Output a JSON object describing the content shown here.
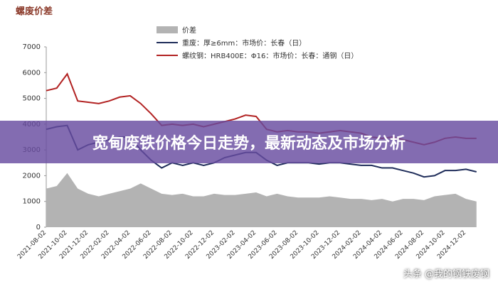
{
  "chart_data": {
    "type": "line",
    "title": "螺废价差",
    "categories": [
      "2021-08-02",
      null,
      "2021-10-02",
      null,
      "2021-12-02",
      null,
      "2022-02-02",
      null,
      "2022-04-02",
      null,
      "2022-06-02",
      null,
      "2022-08-02",
      null,
      "2022-10-02",
      null,
      "2022-12-02",
      null,
      "2023-02-02",
      null,
      "2023-04-02",
      null,
      "2023-06-02",
      null,
      "2023-08-02",
      null,
      "2023-10-02",
      null,
      "2023-12-02",
      null,
      "2024-02-02",
      null,
      "2024-04-02",
      null,
      "2024-06-02",
      null,
      "2024-08-02",
      null,
      "2024-10-02",
      null,
      "2024-12-02",
      null
    ],
    "series": [
      {
        "name": "价差",
        "color": "#b3b3b3",
        "style": "area",
        "values": [
          1500,
          1600,
          2100,
          1500,
          1300,
          1200,
          1300,
          1400,
          1500,
          1700,
          1500,
          1300,
          1250,
          1300,
          1200,
          1200,
          1300,
          1250,
          1250,
          1300,
          1350,
          1200,
          1300,
          1200,
          1150,
          1150,
          1150,
          1200,
          1150,
          1100,
          1100,
          1050,
          1100,
          1000,
          1100,
          1100,
          1050,
          1200,
          1250,
          1300,
          1100,
          1000
        ]
      },
      {
        "name": "重废：厚≥6mm：市场价：长春（日）",
        "color": "#1f2d5a",
        "style": "line",
        "values": [
          3800,
          3900,
          3950,
          3000,
          3200,
          3300,
          3400,
          3500,
          3500,
          3000,
          2600,
          2300,
          2500,
          2400,
          2500,
          2400,
          2500,
          2700,
          2800,
          2900,
          2900,
          2600,
          2400,
          2500,
          2500,
          2500,
          2450,
          2500,
          2500,
          2450,
          2400,
          2400,
          2300,
          2300,
          2200,
          2100,
          1950,
          2000,
          2200,
          2200,
          2250,
          2150
        ]
      },
      {
        "name": "螺纹钢：HRB400E：Φ16：市场价：长春：通钢（日）",
        "color": "#b22222",
        "style": "line",
        "values": [
          5300,
          5400,
          5950,
          4900,
          4850,
          4800,
          4900,
          5050,
          5100,
          4800,
          4400,
          3950,
          4000,
          3950,
          4000,
          3900,
          4000,
          4100,
          4200,
          4350,
          4300,
          3800,
          3700,
          3750,
          3700,
          3700,
          3650,
          3700,
          3750,
          3700,
          3650,
          3500,
          3450,
          3500,
          3400,
          3300,
          3200,
          3300,
          3450,
          3500,
          3450,
          3450
        ]
      }
    ],
    "ylim": [
      0,
      7000
    ],
    "yticks": [
      0,
      1000,
      2000,
      3000,
      4000,
      5000,
      6000,
      7000
    ]
  },
  "overlay": {
    "banner": "宽甸废铁价格今日走势，最新动态及市场分析",
    "watermark": "头条 @我的钢铁废钢"
  }
}
